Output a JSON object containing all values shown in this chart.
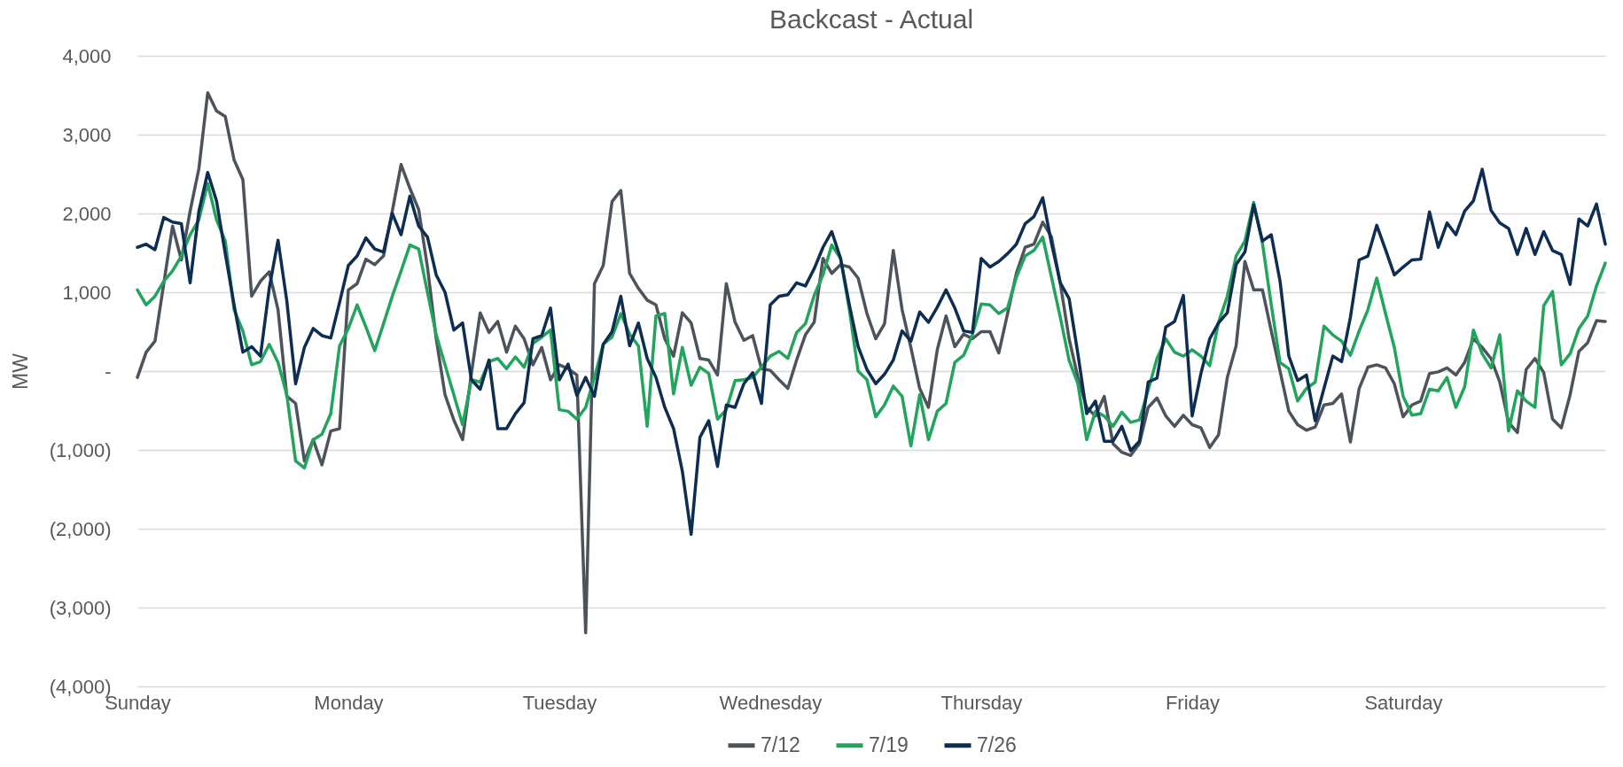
{
  "chart_data": {
    "type": "line",
    "title": "Backcast - Actual",
    "ylabel": "MW",
    "categories": [
      "Sunday",
      null,
      null,
      null,
      null,
      null,
      null,
      null,
      null,
      null,
      null,
      null,
      null,
      null,
      null,
      null,
      null,
      null,
      null,
      null,
      null,
      null,
      null,
      null,
      "Monday",
      null,
      null,
      null,
      null,
      null,
      null,
      null,
      null,
      null,
      null,
      null,
      null,
      null,
      null,
      null,
      null,
      null,
      null,
      null,
      null,
      null,
      null,
      null,
      "Tuesday",
      null,
      null,
      null,
      null,
      null,
      null,
      null,
      null,
      null,
      null,
      null,
      null,
      null,
      null,
      null,
      null,
      null,
      null,
      null,
      null,
      null,
      null,
      null,
      "Wednesday",
      null,
      null,
      null,
      null,
      null,
      null,
      null,
      null,
      null,
      null,
      null,
      null,
      null,
      null,
      null,
      null,
      null,
      null,
      null,
      null,
      null,
      null,
      null,
      "Thursday",
      null,
      null,
      null,
      null,
      null,
      null,
      null,
      null,
      null,
      null,
      null,
      null,
      null,
      null,
      null,
      null,
      null,
      null,
      null,
      null,
      null,
      null,
      null,
      "Friday",
      null,
      null,
      null,
      null,
      null,
      null,
      null,
      null,
      null,
      null,
      null,
      null,
      null,
      null,
      null,
      null,
      null,
      null,
      null,
      null,
      null,
      null,
      null,
      "Saturday",
      null,
      null,
      null,
      null,
      null,
      null,
      null,
      null,
      null,
      null,
      null,
      null,
      null,
      null,
      null,
      null,
      null,
      null,
      null,
      null,
      null,
      null,
      null
    ],
    "ylim": [
      -4000,
      4000
    ],
    "yticks": [
      {
        "value": -4000,
        "label": "(4,000)"
      },
      {
        "value": -3000,
        "label": "(3,000)"
      },
      {
        "value": -2000,
        "label": "(2,000)"
      },
      {
        "value": -1000,
        "label": "(1,000)"
      },
      {
        "value": 0,
        "label": "-"
      },
      {
        "value": 1000,
        "label": "1,000"
      },
      {
        "value": 2000,
        "label": "2,000"
      },
      {
        "value": 3000,
        "label": "3,000"
      },
      {
        "value": 4000,
        "label": "4,000"
      }
    ],
    "grid": "y",
    "legend": "bottom",
    "series": [
      {
        "name": "7/12",
        "color": "#4d535b",
        "values": [
          -80,
          240,
          380,
          1110,
          1840,
          1410,
          2030,
          2570,
          3530,
          3300,
          3230,
          2680,
          2430,
          950,
          1140,
          1260,
          780,
          -320,
          -410,
          -1140,
          -870,
          -1190,
          -760,
          -730,
          1030,
          1110,
          1420,
          1350,
          1460,
          2030,
          2620,
          2320,
          2050,
          1320,
          410,
          -300,
          -620,
          -870,
          -30,
          740,
          490,
          630,
          240,
          570,
          410,
          80,
          300,
          -110,
          80,
          30,
          -50,
          -3320,
          1110,
          1340,
          2150,
          2290,
          1240,
          1050,
          900,
          840,
          410,
          190,
          740,
          610,
          160,
          140,
          -50,
          1110,
          620,
          390,
          450,
          30,
          10,
          -110,
          -220,
          140,
          460,
          620,
          1430,
          1240,
          1350,
          1320,
          1180,
          730,
          410,
          600,
          1530,
          780,
          300,
          -220,
          -460,
          270,
          700,
          310,
          470,
          410,
          500,
          500,
          230,
          730,
          1240,
          1570,
          1610,
          1890,
          1700,
          1110,
          410,
          -80,
          -460,
          -570,
          -320,
          -920,
          -1030,
          -1070,
          -920,
          -460,
          -340,
          -570,
          -700,
          -560,
          -680,
          -720,
          -970,
          -810,
          -80,
          320,
          1390,
          1030,
          1030,
          510,
          0,
          -510,
          -680,
          -750,
          -710,
          -430,
          -410,
          -290,
          -900,
          -220,
          50,
          80,
          40,
          -160,
          -580,
          -430,
          -380,
          -30,
          -10,
          40,
          -50,
          110,
          410,
          300,
          160,
          -140,
          -650,
          -780,
          20,
          160,
          -20,
          -610,
          -720,
          -300,
          250,
          360,
          640,
          630
        ]
      },
      {
        "name": "7/19",
        "color": "#22a45d",
        "values": [
          1030,
          840,
          950,
          1140,
          1270,
          1460,
          1730,
          1920,
          2380,
          1920,
          1650,
          780,
          510,
          80,
          120,
          340,
          110,
          -300,
          -1140,
          -1230,
          -870,
          -800,
          -540,
          320,
          540,
          840,
          560,
          260,
          600,
          950,
          1270,
          1600,
          1550,
          1000,
          460,
          80,
          -300,
          -680,
          -110,
          -140,
          120,
          160,
          30,
          180,
          50,
          350,
          430,
          520,
          -490,
          -510,
          -610,
          -460,
          -80,
          340,
          430,
          730,
          470,
          320,
          -700,
          700,
          730,
          -290,
          300,
          -180,
          50,
          -30,
          -610,
          -490,
          -120,
          -110,
          -80,
          50,
          190,
          250,
          160,
          490,
          600,
          960,
          1220,
          1600,
          1430,
          780,
          0,
          -110,
          -580,
          -430,
          -190,
          -320,
          -950,
          -300,
          -870,
          -510,
          -410,
          110,
          200,
          460,
          850,
          840,
          730,
          800,
          1190,
          1460,
          1530,
          1700,
          1190,
          680,
          140,
          -160,
          -870,
          -510,
          -570,
          -700,
          -520,
          -650,
          -620,
          -240,
          160,
          410,
          240,
          190,
          270,
          190,
          70,
          620,
          950,
          1460,
          1650,
          2140,
          1620,
          840,
          110,
          30,
          -380,
          -220,
          -140,
          570,
          460,
          380,
          200,
          510,
          780,
          1180,
          730,
          300,
          -320,
          -560,
          -540,
          -230,
          -250,
          -80,
          -460,
          -200,
          520,
          220,
          40,
          460,
          -760,
          -250,
          -380,
          -460,
          830,
          1010,
          80,
          220,
          540,
          700,
          1080,
          1370
        ]
      },
      {
        "name": "7/26",
        "color": "#0e2d52",
        "values": [
          1570,
          1610,
          1540,
          1950,
          1890,
          1870,
          1120,
          2030,
          2520,
          2160,
          1490,
          840,
          240,
          310,
          190,
          1050,
          1660,
          890,
          -160,
          300,
          540,
          450,
          420,
          870,
          1340,
          1460,
          1690,
          1550,
          1510,
          2000,
          1730,
          2220,
          1840,
          1700,
          1220,
          1000,
          520,
          610,
          -110,
          -230,
          140,
          -730,
          -730,
          -540,
          -400,
          410,
          450,
          800,
          -110,
          90,
          -310,
          -80,
          -320,
          340,
          500,
          950,
          320,
          610,
          160,
          -80,
          -460,
          -730,
          -1270,
          -2070,
          -840,
          -630,
          -1210,
          -430,
          -460,
          -160,
          -20,
          -410,
          840,
          950,
          970,
          1120,
          1080,
          1300,
          1570,
          1770,
          1430,
          840,
          310,
          20,
          -160,
          -40,
          140,
          510,
          380,
          750,
          620,
          810,
          1030,
          800,
          510,
          490,
          1430,
          1320,
          1390,
          1490,
          1610,
          1870,
          1960,
          2200,
          1620,
          1120,
          920,
          220,
          -540,
          -380,
          -890,
          -890,
          -700,
          -1010,
          -890,
          -140,
          -90,
          560,
          630,
          960,
          -570,
          -30,
          410,
          610,
          740,
          1350,
          1510,
          2110,
          1650,
          1730,
          1140,
          190,
          -120,
          -50,
          -630,
          -220,
          190,
          120,
          680,
          1410,
          1460,
          1850,
          1540,
          1220,
          1320,
          1410,
          1420,
          2020,
          1570,
          1880,
          1730,
          2030,
          2160,
          2560,
          2040,
          1880,
          1810,
          1480,
          1810,
          1480,
          1770,
          1530,
          1480,
          1100,
          1930,
          1840,
          2120,
          1610
        ]
      }
    ]
  }
}
